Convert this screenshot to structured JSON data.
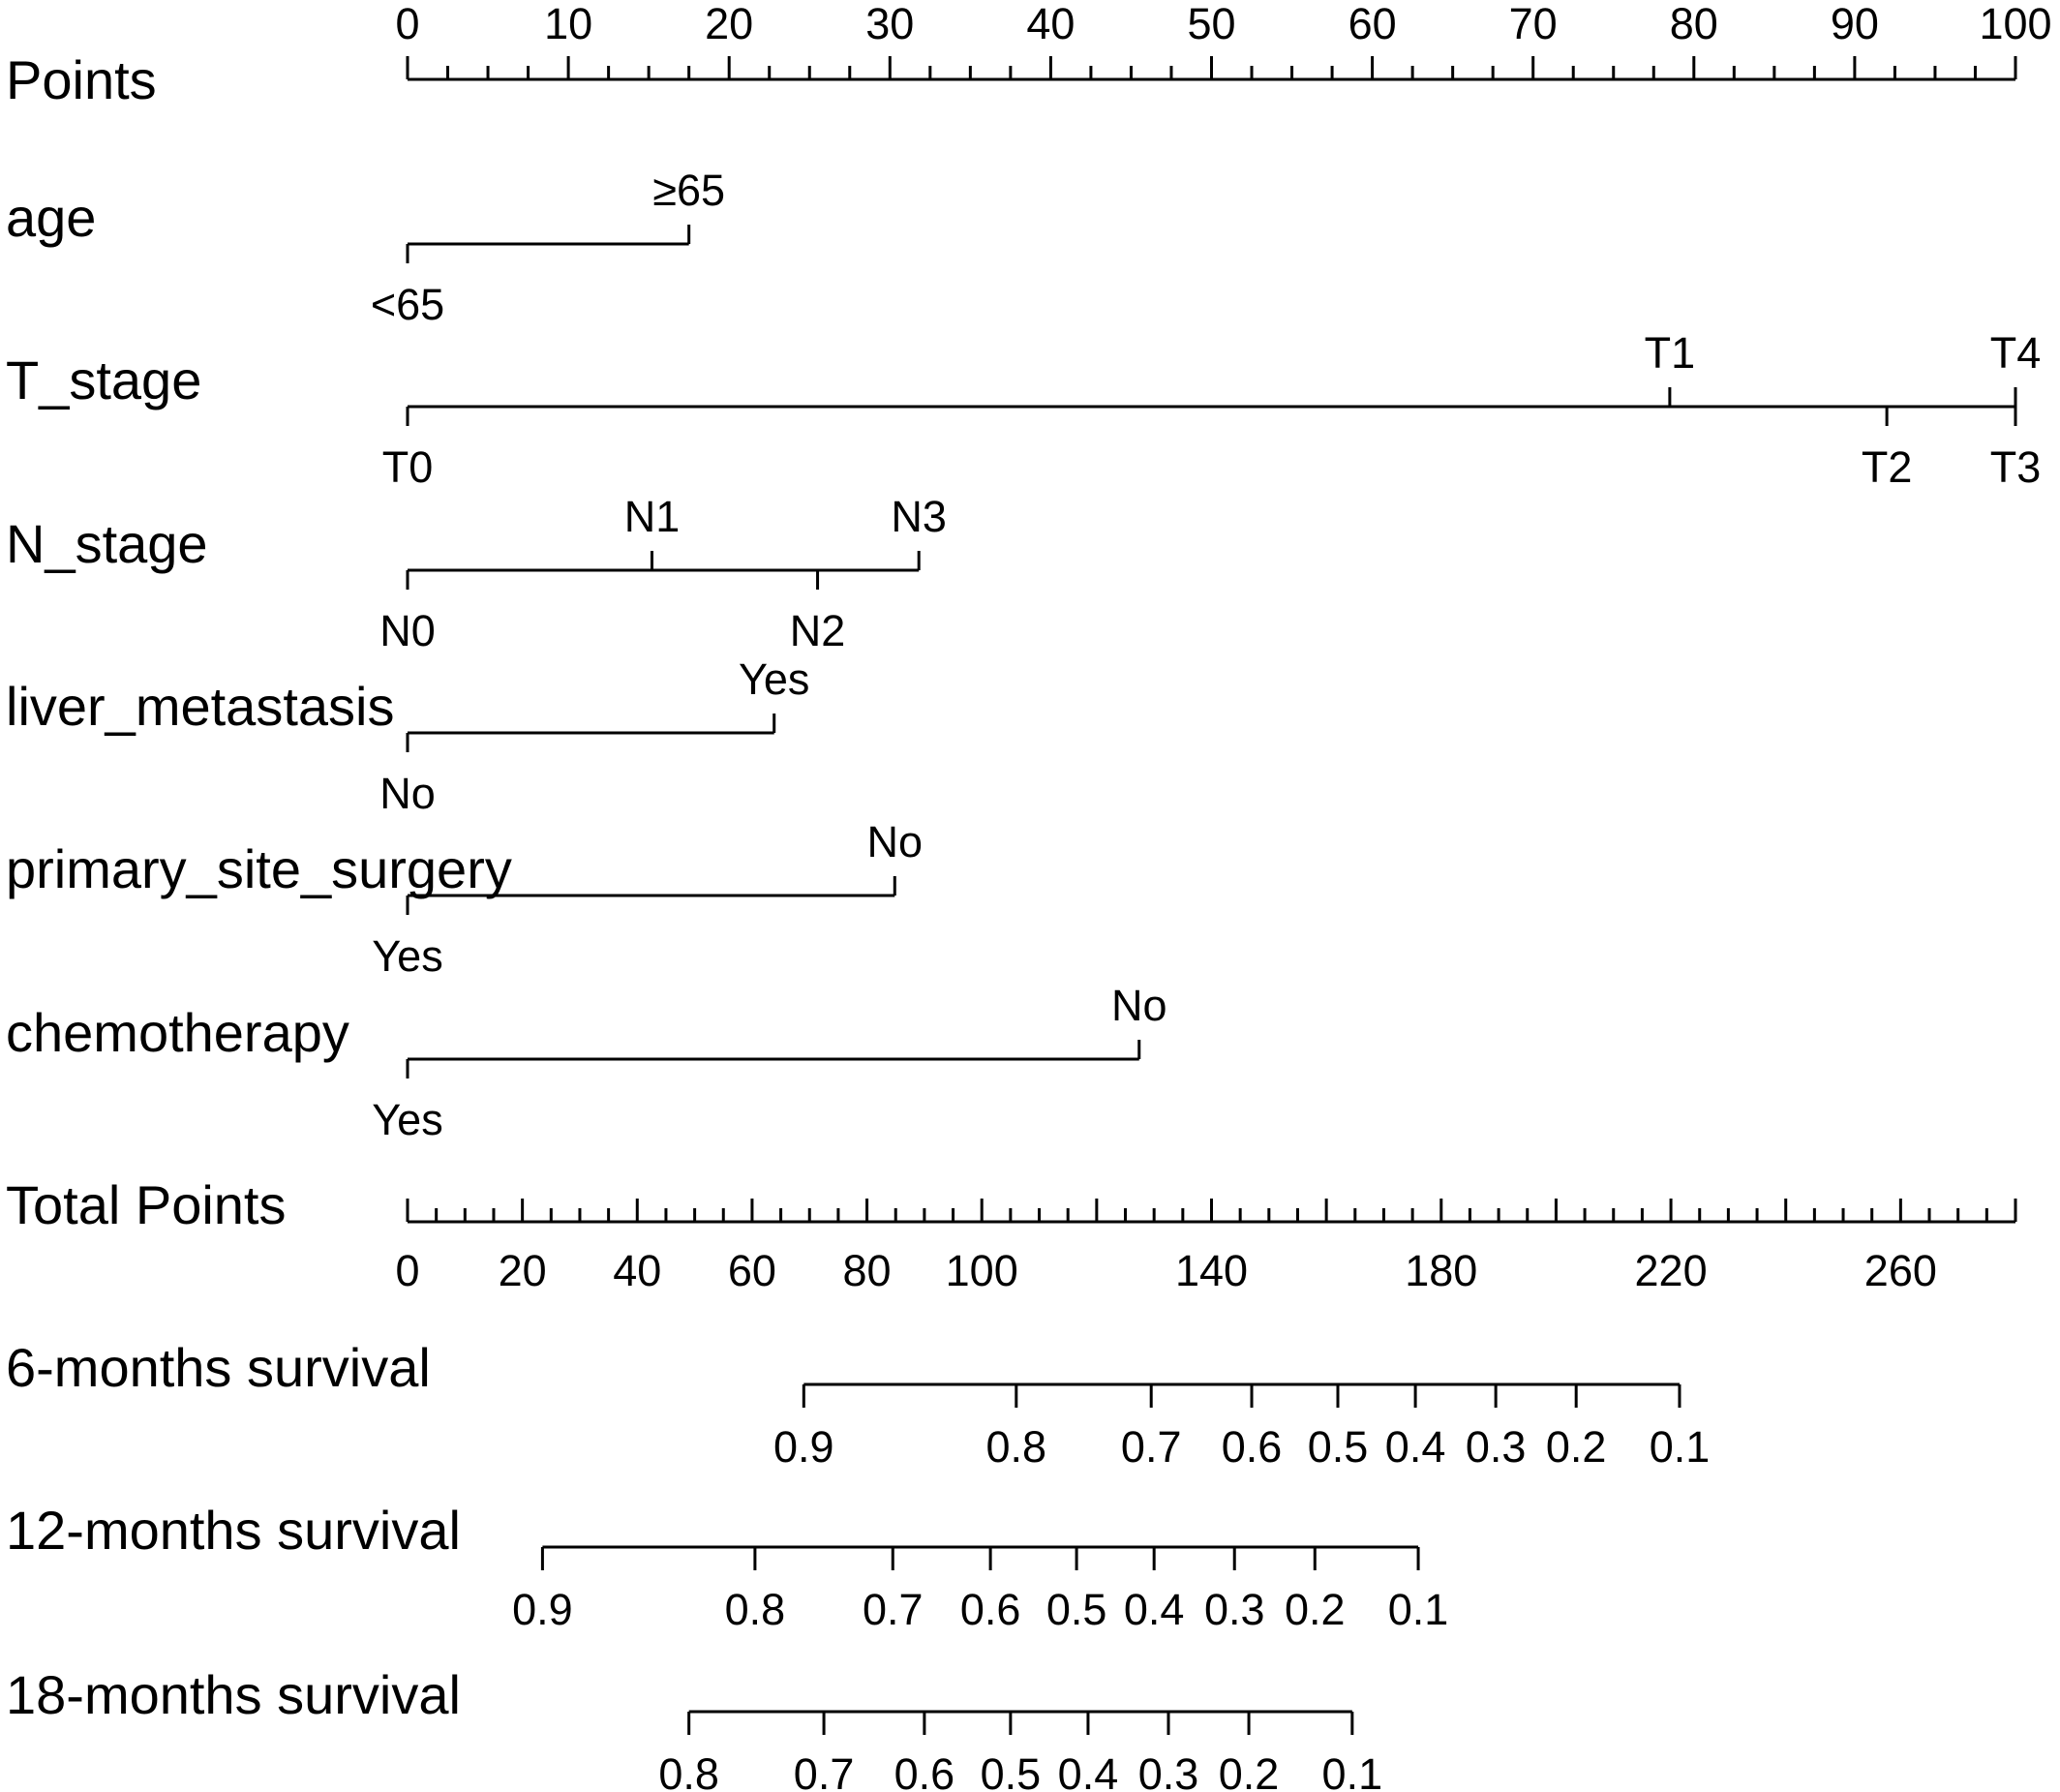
{
  "chart_data": {
    "type": "nomogram",
    "title": "",
    "points_axis": {
      "label": "Points",
      "range": [
        0,
        100
      ],
      "major_ticks": [
        0,
        10,
        20,
        30,
        40,
        50,
        60,
        70,
        80,
        90,
        100
      ],
      "minor_step": 2.5
    },
    "predictors": [
      {
        "name": "age",
        "levels": [
          {
            "label": "<65",
            "points": 0,
            "label_pos": "below"
          },
          {
            "label": "≥65",
            "points": 17.5,
            "label_pos": "above"
          }
        ]
      },
      {
        "name": "T_stage",
        "levels": [
          {
            "label": "T0",
            "points": 0,
            "label_pos": "below"
          },
          {
            "label": "T1",
            "points": 78.5,
            "label_pos": "above"
          },
          {
            "label": "T2",
            "points": 92,
            "label_pos": "below"
          },
          {
            "label": "T3",
            "points": 100,
            "label_pos": "below"
          },
          {
            "label": "T4",
            "points": 100,
            "label_pos": "above"
          }
        ]
      },
      {
        "name": "N_stage",
        "levels": [
          {
            "label": "N0",
            "points": 0,
            "label_pos": "below"
          },
          {
            "label": "N1",
            "points": 15.2,
            "label_pos": "above"
          },
          {
            "label": "N2",
            "points": 25.5,
            "label_pos": "below"
          },
          {
            "label": "N3",
            "points": 31.8,
            "label_pos": "above"
          }
        ]
      },
      {
        "name": "liver_metastasis",
        "levels": [
          {
            "label": "No",
            "points": 0,
            "label_pos": "below"
          },
          {
            "label": "Yes",
            "points": 22.8,
            "label_pos": "above"
          }
        ]
      },
      {
        "name": "primary_site_surgery",
        "levels": [
          {
            "label": "Yes",
            "points": 0,
            "label_pos": "below"
          },
          {
            "label": "No",
            "points": 30.3,
            "label_pos": "above"
          }
        ]
      },
      {
        "name": "chemotherapy",
        "levels": [
          {
            "label": "Yes",
            "points": 0,
            "label_pos": "below"
          },
          {
            "label": "No",
            "points": 45.5,
            "label_pos": "above"
          }
        ]
      }
    ],
    "total_points_axis": {
      "label": "Total Points",
      "range": [
        0,
        280
      ],
      "tick_labels": [
        0,
        20,
        40,
        60,
        80,
        100,
        140,
        180,
        220,
        260
      ],
      "major_step": 20,
      "minor_step": 5
    },
    "survival_axes": [
      {
        "label": "6-months survival",
        "ticks": [
          {
            "label": "0.9",
            "total_points": 69
          },
          {
            "label": "0.8",
            "total_points": 106
          },
          {
            "label": "0.7",
            "total_points": 129.5
          },
          {
            "label": "0.6",
            "total_points": 147
          },
          {
            "label": "0.5",
            "total_points": 162
          },
          {
            "label": "0.4",
            "total_points": 175.5
          },
          {
            "label": "0.3",
            "total_points": 189.5
          },
          {
            "label": "0.2",
            "total_points": 203.5
          },
          {
            "label": "0.1",
            "total_points": 221.5
          }
        ]
      },
      {
        "label": "12-months survival",
        "ticks": [
          {
            "label": "0.9",
            "total_points": 23.5
          },
          {
            "label": "0.8",
            "total_points": 60.5
          },
          {
            "label": "0.7",
            "total_points": 84.5
          },
          {
            "label": "0.6",
            "total_points": 101.5
          },
          {
            "label": "0.5",
            "total_points": 116.5
          },
          {
            "label": "0.4",
            "total_points": 130
          },
          {
            "label": "0.3",
            "total_points": 144
          },
          {
            "label": "0.2",
            "total_points": 158
          },
          {
            "label": "0.1",
            "total_points": 176
          }
        ]
      },
      {
        "label": "18-months survival",
        "ticks": [
          {
            "label": "0.8",
            "total_points": 49
          },
          {
            "label": "0.7",
            "total_points": 72.5
          },
          {
            "label": "0.6",
            "total_points": 90
          },
          {
            "label": "0.5",
            "total_points": 105
          },
          {
            "label": "0.4",
            "total_points": 118.5
          },
          {
            "label": "0.3",
            "total_points": 132.5
          },
          {
            "label": "0.2",
            "total_points": 146.5
          },
          {
            "label": "0.1",
            "total_points": 164.5
          }
        ]
      }
    ]
  }
}
